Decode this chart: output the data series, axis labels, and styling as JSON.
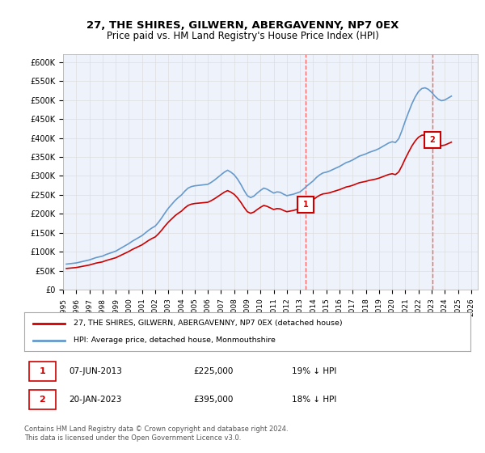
{
  "title1": "27, THE SHIRES, GILWERN, ABERGAVENNY, NP7 0EX",
  "title2": "Price paid vs. HM Land Registry's House Price Index (HPI)",
  "ylim": [
    0,
    620000
  ],
  "yticks": [
    0,
    50000,
    100000,
    150000,
    200000,
    250000,
    300000,
    350000,
    400000,
    450000,
    500000,
    550000,
    600000
  ],
  "xlim_start": 1995.0,
  "xlim_end": 2026.5,
  "legend_line1": "27, THE SHIRES, GILWERN, ABERGAVENNY, NP7 0EX (detached house)",
  "legend_line2": "HPI: Average price, detached house, Monmouthshire",
  "sale1_date": "07-JUN-2013",
  "sale1_price": 225000,
  "sale1_pct": "19% ↓ HPI",
  "sale2_date": "20-JAN-2023",
  "sale2_price": 395000,
  "sale2_pct": "18% ↓ HPI",
  "footer": "Contains HM Land Registry data © Crown copyright and database right 2024.\nThis data is licensed under the Open Government Licence v3.0.",
  "hpi_color": "#6699cc",
  "sale_color": "#cc0000",
  "marker_color": "#cc0000",
  "vline_color": "#ff6666",
  "grid_color": "#dddddd",
  "bg_color": "#eef3fb",
  "hpi_data": {
    "dates": [
      1995.25,
      1995.5,
      1995.75,
      1996.0,
      1996.25,
      1996.5,
      1996.75,
      1997.0,
      1997.25,
      1997.5,
      1997.75,
      1998.0,
      1998.25,
      1998.5,
      1998.75,
      1999.0,
      1999.25,
      1999.5,
      1999.75,
      2000.0,
      2000.25,
      2000.5,
      2000.75,
      2001.0,
      2001.25,
      2001.5,
      2001.75,
      2002.0,
      2002.25,
      2002.5,
      2002.75,
      2003.0,
      2003.25,
      2003.5,
      2003.75,
      2004.0,
      2004.25,
      2004.5,
      2004.75,
      2005.0,
      2005.25,
      2005.5,
      2005.75,
      2006.0,
      2006.25,
      2006.5,
      2006.75,
      2007.0,
      2007.25,
      2007.5,
      2007.75,
      2008.0,
      2008.25,
      2008.5,
      2008.75,
      2009.0,
      2009.25,
      2009.5,
      2009.75,
      2010.0,
      2010.25,
      2010.5,
      2010.75,
      2011.0,
      2011.25,
      2011.5,
      2011.75,
      2012.0,
      2012.25,
      2012.5,
      2012.75,
      2013.0,
      2013.25,
      2013.5,
      2013.75,
      2014.0,
      2014.25,
      2014.5,
      2014.75,
      2015.0,
      2015.25,
      2015.5,
      2015.75,
      2016.0,
      2016.25,
      2016.5,
      2016.75,
      2017.0,
      2017.25,
      2017.5,
      2017.75,
      2018.0,
      2018.25,
      2018.5,
      2018.75,
      2019.0,
      2019.25,
      2019.5,
      2019.75,
      2020.0,
      2020.25,
      2020.5,
      2020.75,
      2021.0,
      2021.25,
      2021.5,
      2021.75,
      2022.0,
      2022.25,
      2022.5,
      2022.75,
      2023.0,
      2023.25,
      2023.5,
      2023.75,
      2024.0,
      2024.25,
      2024.5
    ],
    "values": [
      68000,
      69000,
      70000,
      71000,
      73000,
      75000,
      77000,
      79000,
      82000,
      85000,
      87000,
      89000,
      93000,
      96000,
      99000,
      102000,
      107000,
      112000,
      117000,
      122000,
      128000,
      133000,
      138000,
      143000,
      150000,
      157000,
      163000,
      168000,
      178000,
      190000,
      203000,
      215000,
      225000,
      235000,
      243000,
      250000,
      260000,
      268000,
      272000,
      274000,
      275000,
      276000,
      277000,
      278000,
      283000,
      289000,
      296000,
      303000,
      310000,
      315000,
      310000,
      303000,
      292000,
      278000,
      262000,
      248000,
      243000,
      247000,
      255000,
      262000,
      268000,
      265000,
      260000,
      255000,
      258000,
      257000,
      252000,
      248000,
      250000,
      252000,
      255000,
      258000,
      265000,
      273000,
      280000,
      287000,
      296000,
      303000,
      308000,
      310000,
      313000,
      317000,
      321000,
      325000,
      330000,
      335000,
      338000,
      342000,
      347000,
      352000,
      355000,
      358000,
      362000,
      365000,
      368000,
      372000,
      377000,
      382000,
      387000,
      390000,
      388000,
      398000,
      420000,
      445000,
      468000,
      490000,
      508000,
      522000,
      530000,
      532000,
      528000,
      520000,
      510000,
      502000,
      498000,
      500000,
      505000,
      510000
    ]
  },
  "sale_points": {
    "dates": [
      2013.44,
      2023.05
    ],
    "prices": [
      225000,
      395000
    ],
    "labels": [
      "1",
      "2"
    ]
  },
  "vline_dates": [
    2013.44,
    2023.05
  ]
}
